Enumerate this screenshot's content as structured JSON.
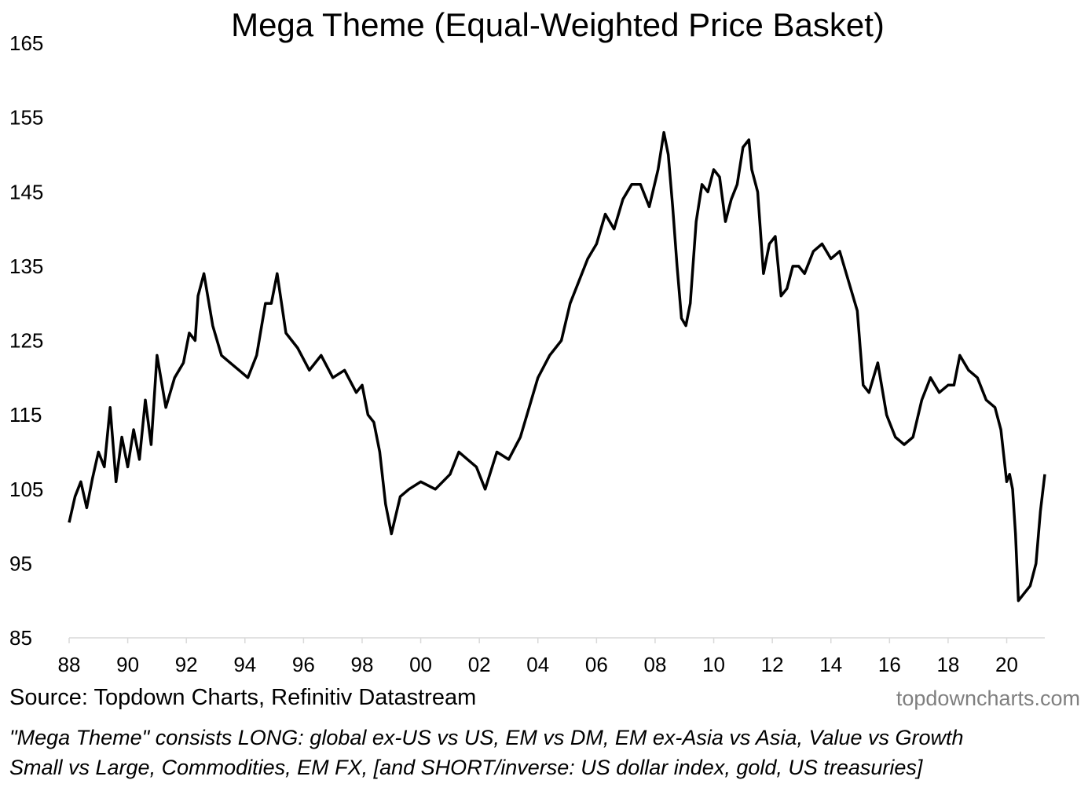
{
  "chart_data": {
    "type": "line",
    "title": "Mega Theme (Equal-Weighted Price Basket)",
    "xlabel": "",
    "ylabel": "",
    "ylim": [
      85,
      165
    ],
    "yticks": [
      85,
      95,
      105,
      115,
      125,
      135,
      145,
      155,
      165
    ],
    "xlim": [
      1988,
      2021.3
    ],
    "xticks": [
      {
        "year": 1988,
        "label": "88"
      },
      {
        "year": 1990,
        "label": "90"
      },
      {
        "year": 1992,
        "label": "92"
      },
      {
        "year": 1994,
        "label": "94"
      },
      {
        "year": 1996,
        "label": "96"
      },
      {
        "year": 1998,
        "label": "98"
      },
      {
        "year": 2000,
        "label": "00"
      },
      {
        "year": 2002,
        "label": "02"
      },
      {
        "year": 2004,
        "label": "04"
      },
      {
        "year": 2006,
        "label": "06"
      },
      {
        "year": 2008,
        "label": "08"
      },
      {
        "year": 2010,
        "label": "10"
      },
      {
        "year": 2012,
        "label": "12"
      },
      {
        "year": 2014,
        "label": "14"
      },
      {
        "year": 2016,
        "label": "16"
      },
      {
        "year": 2018,
        "label": "18"
      },
      {
        "year": 2020,
        "label": "20"
      }
    ],
    "grid": false,
    "series": [
      {
        "name": "Mega Theme",
        "color": "#000000",
        "x": [
          1988.0,
          1988.2,
          1988.4,
          1988.6,
          1988.8,
          1989.0,
          1989.2,
          1989.4,
          1989.6,
          1989.8,
          1990.0,
          1990.2,
          1990.4,
          1990.6,
          1990.8,
          1991.0,
          1991.3,
          1991.6,
          1991.9,
          1992.1,
          1992.3,
          1992.4,
          1992.6,
          1992.9,
          1993.2,
          1993.5,
          1993.8,
          1994.1,
          1994.4,
          1994.7,
          1994.9,
          1995.1,
          1995.4,
          1995.8,
          1996.2,
          1996.6,
          1997.0,
          1997.4,
          1997.8,
          1998.0,
          1998.2,
          1998.4,
          1998.6,
          1998.8,
          1999.0,
          1999.3,
          1999.6,
          2000.0,
          2000.5,
          2001.0,
          2001.3,
          2001.6,
          2001.9,
          2002.2,
          2002.6,
          2003.0,
          2003.4,
          2003.7,
          2004.0,
          2004.4,
          2004.8,
          2005.1,
          2005.4,
          2005.7,
          2006.0,
          2006.3,
          2006.6,
          2006.9,
          2007.2,
          2007.5,
          2007.8,
          2008.1,
          2008.3,
          2008.45,
          2008.6,
          2008.75,
          2008.9,
          2009.05,
          2009.2,
          2009.4,
          2009.6,
          2009.8,
          2010.0,
          2010.2,
          2010.4,
          2010.6,
          2010.8,
          2011.0,
          2011.2,
          2011.3,
          2011.5,
          2011.7,
          2011.9,
          2012.1,
          2012.3,
          2012.5,
          2012.7,
          2012.9,
          2013.1,
          2013.4,
          2013.7,
          2014.0,
          2014.3,
          2014.6,
          2014.9,
          2015.1,
          2015.3,
          2015.6,
          2015.9,
          2016.0,
          2016.2,
          2016.5,
          2016.8,
          2017.1,
          2017.4,
          2017.7,
          2018.0,
          2018.2,
          2018.4,
          2018.7,
          2019.0,
          2019.3,
          2019.6,
          2019.8,
          2020.0,
          2020.1,
          2020.2,
          2020.3,
          2020.4,
          2020.6,
          2020.8,
          2021.0,
          2021.15,
          2021.3
        ],
        "y": [
          100.5,
          104,
          106,
          102.5,
          106.5,
          110,
          108,
          116,
          106,
          112,
          108,
          113,
          109,
          117,
          111,
          123,
          116,
          120,
          122,
          126,
          125,
          131,
          134,
          127,
          123,
          122,
          121,
          120,
          123,
          130,
          130,
          134,
          126,
          124,
          121,
          123,
          120,
          121,
          118,
          119,
          115,
          114,
          110,
          103,
          99,
          104,
          105,
          106,
          105,
          107,
          110,
          109,
          108,
          105,
          110,
          109,
          112,
          116,
          120,
          123,
          125,
          130,
          133,
          136,
          138,
          142,
          140,
          144,
          146,
          146,
          143,
          148,
          153,
          150,
          143,
          135,
          128,
          127,
          130,
          141,
          146,
          145,
          148,
          147,
          141,
          144,
          146,
          151,
          152,
          148,
          145,
          134,
          138,
          139,
          131,
          132,
          135,
          135,
          134,
          137,
          138,
          136,
          137,
          133,
          129,
          119,
          118,
          122,
          115,
          114,
          112,
          111,
          112,
          117,
          120,
          118,
          119,
          119,
          123,
          121,
          120,
          117,
          116,
          113,
          106,
          107,
          105,
          99,
          90,
          91,
          92,
          95,
          102,
          107
        ]
      }
    ]
  },
  "source": "Source: Topdown Charts, Refinitiv Datastream",
  "watermark": "topdowncharts.com",
  "note_line1": "\"Mega Theme\" consists LONG: global ex-US vs US, EM vs DM, EM ex-Asia vs Asia, Value vs Growth",
  "note_line2": "Small vs Large, Commodities, EM FX, [and SHORT/inverse: US dollar index, gold, US treasuries]"
}
